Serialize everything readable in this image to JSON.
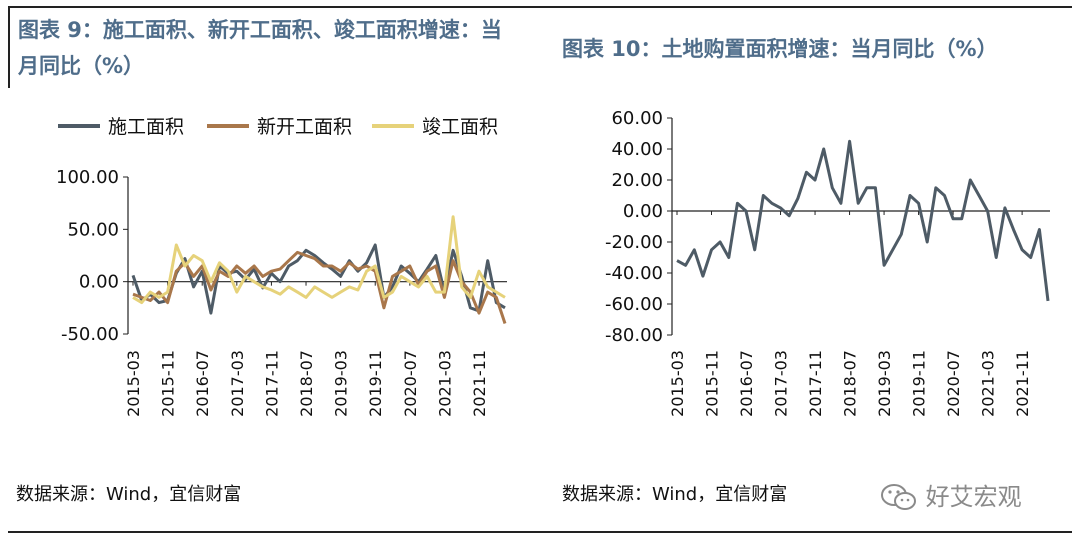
{
  "left_title": "图表 9：施工面积、新开工面积、竣工面积增速：当月同比（%）",
  "left_title_lines": [
    "图表 9：施工面积、新开工面积、竣工面积增速：当",
    "月同比（%）"
  ],
  "right_title": "图表 10：土地购置面积增速：当月同比（%）",
  "left_source": "数据来源：Wind，宜信财富",
  "right_source": "数据来源：Wind，宜信财富",
  "watermark": "好艾宏观",
  "watermark_icon": "wechat-icon",
  "chart_data": [
    {
      "type": "line",
      "title": "图表 9：施工面积、新开工面积、竣工面积增速：当月同比（%）",
      "x_ticks": [
        "2015-03",
        "2015-11",
        "2016-07",
        "2017-03",
        "2017-11",
        "2018-07",
        "2019-03",
        "2019-11",
        "2020-07",
        "2021-03",
        "2021-11"
      ],
      "y_ticks": [
        "100.00",
        "50.00",
        "0.00",
        "-50.00"
      ],
      "ylim": [
        -50,
        100
      ],
      "xlim": [
        "2015-03",
        "2022-05"
      ],
      "legend_position": "top",
      "grid": false,
      "x": [
        "2015-03",
        "2015-05",
        "2015-07",
        "2015-09",
        "2015-11",
        "2016-01",
        "2016-03",
        "2016-05",
        "2016-07",
        "2016-09",
        "2016-11",
        "2017-01",
        "2017-03",
        "2017-05",
        "2017-07",
        "2017-09",
        "2017-11",
        "2018-01",
        "2018-03",
        "2018-05",
        "2018-07",
        "2018-09",
        "2018-11",
        "2019-01",
        "2019-03",
        "2019-05",
        "2019-07",
        "2019-09",
        "2019-11",
        "2020-01",
        "2020-03",
        "2020-05",
        "2020-07",
        "2020-09",
        "2020-11",
        "2021-01",
        "2021-03",
        "2021-05",
        "2021-07",
        "2021-09",
        "2021-11",
        "2022-01",
        "2022-03",
        "2022-05"
      ],
      "series": [
        {
          "name": "施工面积",
          "color": "#4e5b66",
          "values": [
            6,
            -18,
            -12,
            -20,
            -18,
            8,
            22,
            -5,
            10,
            -30,
            15,
            8,
            10,
            2,
            12,
            -6,
            8,
            0,
            15,
            20,
            30,
            25,
            18,
            12,
            5,
            20,
            10,
            18,
            35,
            -15,
            -5,
            15,
            8,
            0,
            12,
            25,
            -10,
            30,
            5,
            -25,
            -28,
            20,
            -20,
            -25
          ]
        },
        {
          "name": "新开工面积",
          "color": "#a9774b",
          "values": [
            -12,
            -15,
            -18,
            -10,
            -20,
            10,
            18,
            5,
            15,
            -8,
            10,
            5,
            15,
            8,
            15,
            5,
            10,
            12,
            20,
            28,
            25,
            22,
            15,
            15,
            10,
            18,
            12,
            15,
            10,
            -25,
            5,
            10,
            15,
            -3,
            10,
            15,
            -15,
            20,
            0,
            -10,
            -30,
            -10,
            -15,
            -40
          ]
        },
        {
          "name": "竣工面积",
          "color": "#e6d27a",
          "values": [
            -15,
            -20,
            -10,
            -15,
            -10,
            35,
            15,
            25,
            20,
            0,
            18,
            10,
            -10,
            5,
            0,
            -5,
            -8,
            -12,
            -5,
            -10,
            -15,
            -5,
            -10,
            -15,
            -10,
            -5,
            -8,
            10,
            15,
            -15,
            -10,
            5,
            0,
            -5,
            5,
            -10,
            -10,
            62,
            -5,
            -15,
            10,
            -5,
            -10,
            -15
          ]
        }
      ]
    },
    {
      "type": "line",
      "title": "图表 10：土地购置面积增速：当月同比（%）",
      "x_ticks": [
        "2015-03",
        "2015-11",
        "2016-07",
        "2017-03",
        "2017-11",
        "2018-07",
        "2019-03",
        "2019-11",
        "2020-07",
        "2021-03",
        "2021-11"
      ],
      "y_ticks": [
        "60.00",
        "40.00",
        "20.00",
        "0.00",
        "-20.00",
        "-40.00",
        "-60.00",
        "-80.00"
      ],
      "ylim": [
        -80,
        60
      ],
      "xlim": [
        "2015-03",
        "2022-05"
      ],
      "legend": false,
      "grid": false,
      "x": [
        "2015-03",
        "2015-05",
        "2015-07",
        "2015-09",
        "2015-11",
        "2016-01",
        "2016-03",
        "2016-05",
        "2016-07",
        "2016-09",
        "2016-11",
        "2017-01",
        "2017-03",
        "2017-05",
        "2017-07",
        "2017-09",
        "2017-11",
        "2018-01",
        "2018-03",
        "2018-05",
        "2018-07",
        "2018-09",
        "2018-11",
        "2019-01",
        "2019-03",
        "2019-05",
        "2019-07",
        "2019-09",
        "2019-11",
        "2020-01",
        "2020-03",
        "2020-05",
        "2020-07",
        "2020-09",
        "2020-11",
        "2021-01",
        "2021-03",
        "2021-05",
        "2021-07",
        "2021-09",
        "2021-11",
        "2022-01",
        "2022-03",
        "2022-05"
      ],
      "series": [
        {
          "name": "土地购置面积",
          "values": [
            -32,
            -35,
            -25,
            -42,
            -25,
            -20,
            -30,
            5,
            0,
            -25,
            10,
            5,
            2,
            -3,
            8,
            25,
            20,
            40,
            15,
            5,
            45,
            5,
            15,
            15,
            -35,
            -25,
            -15,
            10,
            5,
            -20,
            15,
            10,
            -5,
            -5,
            20,
            10,
            0,
            -30,
            2,
            -12,
            -25,
            -30,
            -12,
            -58
          ]
        }
      ]
    }
  ]
}
